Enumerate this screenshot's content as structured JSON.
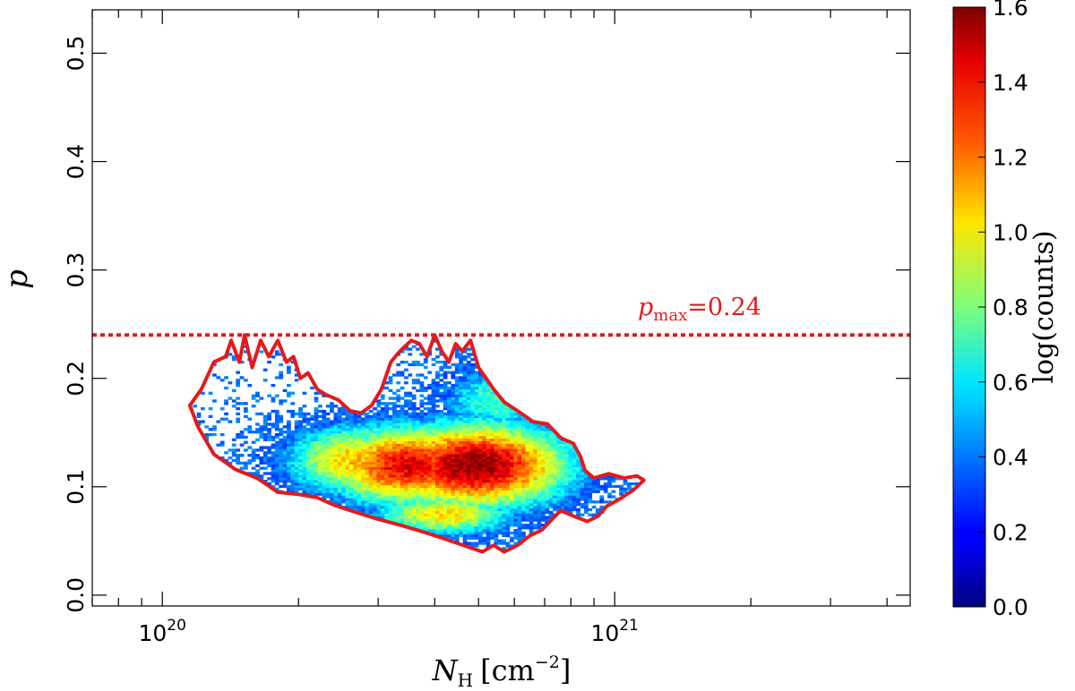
{
  "chart_data": {
    "type": "heatmap",
    "title": "",
    "xlabel": "N_H [cm^-2]",
    "xlabel_parts": {
      "var": "N",
      "sub": "H",
      "unit_open": "[cm",
      "unit_exp": "−2",
      "unit_close": "]"
    },
    "ylabel": "p",
    "x_scale": "log",
    "xlim": [
      7e+19,
      4.5e+21
    ],
    "ylim": [
      -0.01,
      0.54
    ],
    "x_ticks": [
      {
        "value": 1e+20,
        "label_base": "10",
        "label_exp": "20"
      },
      {
        "value": 1e+21,
        "label_base": "10",
        "label_exp": "21"
      }
    ],
    "y_ticks": [
      {
        "value": 0.0,
        "label": "0.0"
      },
      {
        "value": 0.1,
        "label": "0.1"
      },
      {
        "value": 0.2,
        "label": "0.2"
      },
      {
        "value": 0.3,
        "label": "0.3"
      },
      {
        "value": 0.4,
        "label": "0.4"
      },
      {
        "value": 0.5,
        "label": "0.5"
      }
    ],
    "reference_line": {
      "y": 0.24,
      "label_var": "p",
      "label_sub": "max",
      "label_value": "=0.24",
      "color": "#e41a1c",
      "style": "dotted"
    },
    "density": {
      "clusters": [
        {
          "x": 4.9e+20,
          "y": 0.12,
          "sx": 0.16,
          "sy": 0.03,
          "peak": 1.6
        },
        {
          "x": 3.5e+20,
          "y": 0.12,
          "sx": 0.14,
          "sy": 0.028,
          "peak": 1.45
        },
        {
          "x": 2.7e+20,
          "y": 0.125,
          "sx": 0.12,
          "sy": 0.025,
          "peak": 1.1
        },
        {
          "x": 4.2e+20,
          "y": 0.075,
          "sx": 0.12,
          "sy": 0.015,
          "peak": 1.05
        },
        {
          "x": 5.5e+20,
          "y": 0.18,
          "sx": 0.1,
          "sy": 0.025,
          "peak": 0.7
        }
      ],
      "grid": {
        "nx": 120,
        "ny": 90
      }
    },
    "contour": [
      [
        1.15e+20,
        0.175
      ],
      [
        1.22e+20,
        0.19
      ],
      [
        1.3e+20,
        0.215
      ],
      [
        1.38e+20,
        0.22
      ],
      [
        1.42e+20,
        0.235
      ],
      [
        1.48e+20,
        0.215
      ],
      [
        1.52e+20,
        0.24
      ],
      [
        1.58e+20,
        0.21
      ],
      [
        1.65e+20,
        0.235
      ],
      [
        1.72e+20,
        0.22
      ],
      [
        1.8e+20,
        0.235
      ],
      [
        1.88e+20,
        0.215
      ],
      [
        1.95e+20,
        0.22
      ],
      [
        2.02e+20,
        0.2
      ],
      [
        2.1e+20,
        0.205
      ],
      [
        2.2e+20,
        0.19
      ],
      [
        2.3e+20,
        0.185
      ],
      [
        2.45e+20,
        0.18
      ],
      [
        2.6e+20,
        0.17
      ],
      [
        2.75e+20,
        0.168
      ],
      [
        2.9e+20,
        0.175
      ],
      [
        3.05e+20,
        0.19
      ],
      [
        3.2e+20,
        0.215
      ],
      [
        3.35e+20,
        0.225
      ],
      [
        3.55e+20,
        0.235
      ],
      [
        3.7e+20,
        0.232
      ],
      [
        3.85e+20,
        0.22
      ],
      [
        4e+20,
        0.24
      ],
      [
        4.15e+20,
        0.225
      ],
      [
        4.3e+20,
        0.215
      ],
      [
        4.45e+20,
        0.232
      ],
      [
        4.6e+20,
        0.225
      ],
      [
        4.8e+20,
        0.235
      ],
      [
        5e+20,
        0.21
      ],
      [
        5.2e+20,
        0.2
      ],
      [
        5.4e+20,
        0.19
      ],
      [
        5.7e+20,
        0.178
      ],
      [
        6.1e+20,
        0.17
      ],
      [
        6.6e+20,
        0.16
      ],
      [
        7.1e+20,
        0.158
      ],
      [
        7.6e+20,
        0.145
      ],
      [
        8.1e+20,
        0.14
      ],
      [
        8.4e+20,
        0.128
      ],
      [
        8.6e+20,
        0.115
      ],
      [
        9e+20,
        0.108
      ],
      [
        9.7e+20,
        0.112
      ],
      [
        1.05e+21,
        0.108
      ],
      [
        1.12e+21,
        0.11
      ],
      [
        1.16e+21,
        0.106
      ],
      [
        1.1e+21,
        0.097
      ],
      [
        1.02e+21,
        0.088
      ],
      [
        9.6e+20,
        0.082
      ],
      [
        9.2e+20,
        0.073
      ],
      [
        8.7e+20,
        0.068
      ],
      [
        8.1e+20,
        0.073
      ],
      [
        7.6e+20,
        0.078
      ],
      [
        7.2e+20,
        0.068
      ],
      [
        6.9e+20,
        0.06
      ],
      [
        6.5e+20,
        0.055
      ],
      [
        6.1e+20,
        0.046
      ],
      [
        5.7e+20,
        0.04
      ],
      [
        5.4e+20,
        0.046
      ],
      [
        5.1e+20,
        0.04
      ],
      [
        4.7e+20,
        0.045
      ],
      [
        4.2e+20,
        0.052
      ],
      [
        3.8e+20,
        0.058
      ],
      [
        3.4e+20,
        0.064
      ],
      [
        3e+20,
        0.07
      ],
      [
        2.7e+20,
        0.076
      ],
      [
        2.4e+20,
        0.083
      ],
      [
        2.2e+20,
        0.09
      ],
      [
        2e+20,
        0.093
      ],
      [
        1.8e+20,
        0.095
      ],
      [
        1.62e+20,
        0.108
      ],
      [
        1.45e+20,
        0.116
      ],
      [
        1.3e+20,
        0.13
      ],
      [
        1.2e+20,
        0.155
      ],
      [
        1.15e+20,
        0.175
      ]
    ],
    "colorbar": {
      "label": "log(counts)",
      "range": [
        0.0,
        1.6
      ],
      "ticks": [
        "0.0",
        "0.2",
        "0.4",
        "0.6",
        "0.8",
        "1.0",
        "1.2",
        "1.4",
        "1.6"
      ],
      "colormap": "jet"
    },
    "grid": false,
    "legend": "none"
  }
}
